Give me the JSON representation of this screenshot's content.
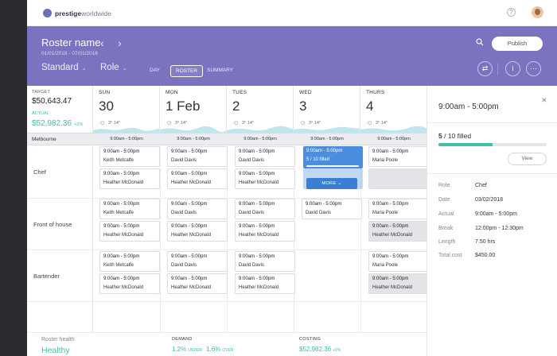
{
  "brand": {
    "name_bold": "prestige",
    "name_light": "worldwide"
  },
  "topbar": {
    "help_icon": "question-circle-icon"
  },
  "header": {
    "title": "Roster name",
    "prev_icon": "chevron-left-icon",
    "next_icon": "chevron-right-icon",
    "date_range": "01/01/2018 - 07/01/2018",
    "view_select": "Standard",
    "group_select": "Role",
    "view_tabs": [
      "DAY",
      "ROSTER",
      "SUMMARY"
    ],
    "active_tab": "ROSTER",
    "publish_label": "Publish",
    "action_icons": [
      "swap-icon",
      "info-icon",
      "more-icon"
    ]
  },
  "summary": {
    "target_label": "TARGET",
    "target_value": "$50,643.47",
    "actual_label": "ACTUAL",
    "actual_value": "$52,982.36",
    "actual_delta": "+2%"
  },
  "days": [
    {
      "name": "SUN",
      "num": "30",
      "temp": "3° 14°"
    },
    {
      "name": "MON",
      "num": "1 Feb",
      "temp": "3° 14°"
    },
    {
      "name": "TUES",
      "num": "2",
      "temp": "3° 14°"
    },
    {
      "name": "WED",
      "num": "3",
      "temp": "3° 14°"
    },
    {
      "name": "THURS",
      "num": "4",
      "temp": "3° 14°"
    }
  ],
  "location": {
    "name": "Melbourne",
    "times": [
      "9:00am - 5:00pm",
      "9:00am - 5:00pm",
      "9:00am - 5:00pm",
      "9:00am - 5:00pm",
      "9:00am - 5:00pm"
    ]
  },
  "roles": [
    "Chef",
    "Front of house",
    "Bartender"
  ],
  "shifts": {
    "chef": [
      [
        "9:00am - 5:00pm",
        "Keith Metcalfe"
      ],
      [
        "9:00am - 5:00pm",
        "Heather McDonald"
      ],
      [
        "9:00am - 5:00pm",
        "David Davis"
      ],
      [
        "9:00am - 5:00pm",
        "Heather McDonald"
      ],
      [
        "9:00am - 5:00pm",
        "David Davis"
      ],
      [
        "9:00am - 5:00pm",
        "Heather McDonald"
      ],
      [
        "9:00am - 5:00pm",
        "Maria Poole"
      ]
    ],
    "foh": [
      [
        "9:00am - 5:00pm",
        "Keith Metcalfe"
      ],
      [
        "9:00am - 5:00pm",
        "Heather McDonald"
      ],
      [
        "9:00am - 5:00pm",
        "David Davis"
      ],
      [
        "9:00am - 5:00pm",
        "Heather McDonald"
      ],
      [
        "9:00am - 5:00pm",
        "David Davis"
      ],
      [
        "9:00am - 5:00pm",
        "Heather McDonald"
      ],
      [
        "9:00am - 5:00pm",
        "David Davis"
      ],
      [
        "9:00am - 5:00pm",
        "Maria Poole"
      ],
      [
        "9:00am - 5:00pm",
        "Heather McDonald"
      ]
    ],
    "bar": [
      [
        "9:00am - 5:00pm",
        "Keith Metcalfe"
      ],
      [
        "9:00am - 5:00pm",
        "Heather McDonald"
      ],
      [
        "9:00am - 5:00pm",
        "David Davis"
      ],
      [
        "9:00am - 5:00pm",
        "Heather McDonald"
      ],
      [
        "9:00am - 5:00pm",
        "David Davis"
      ],
      [
        "9:00am - 5:00pm",
        "Heather McDonald"
      ],
      [
        "9:00am - 5:00pm",
        "Maria Poole"
      ],
      [
        "9:00am - 5:00pm",
        "Heather McDonald"
      ]
    ]
  },
  "selected_shift": {
    "time": "9:00am - 5:00pm",
    "filled": "5 / 10 filled",
    "more_label": "MORE"
  },
  "footer": {
    "health_label": "Roster health",
    "health_value": "Healthy",
    "demand_label": "DEMAND",
    "demand_under": "1.2%",
    "under_label": "UNDER",
    "demand_over": "1.6%",
    "over_label": "OVER",
    "costing_label": "COSTING",
    "costing_value": "$52,982.36",
    "costing_delta": "+2%"
  },
  "panel": {
    "time": "9:00am - 5:00pm",
    "filled_num": "5",
    "filled_rest": " / 10 filled",
    "fill_fraction": 0.5,
    "view_label": "View",
    "details": [
      [
        "Role",
        "Chef"
      ],
      [
        "Date",
        "03/02/2018"
      ],
      [
        "Actual",
        "9:00am - 5:00pm"
      ],
      [
        "Break",
        "12:00pm - 12:30pm"
      ],
      [
        "Length",
        "7.50 hrs"
      ],
      [
        "Total cost",
        "$450.00"
      ]
    ]
  }
}
